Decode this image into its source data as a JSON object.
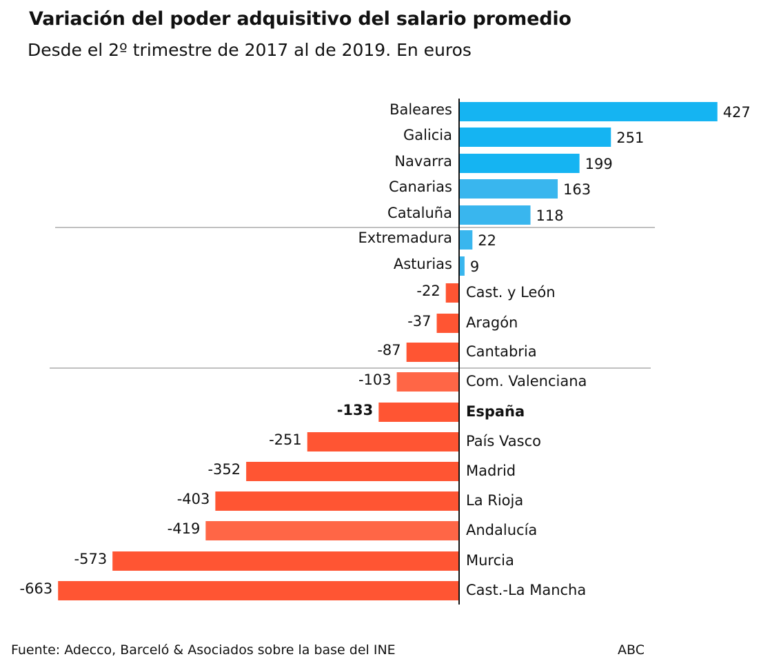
{
  "header": {
    "title": "Variación del poder adquisitivo del salario promedio",
    "subtitle": "Desde el 2º trimestre de 2017 al de 2019. En euros"
  },
  "footer": {
    "source": "Fuente: Adecco, Barceló & Asociados sobre la base del INE",
    "brand": "ABC"
  },
  "colors": {
    "positive": "#15b4f2",
    "positive_light": "#39b6ee",
    "negative": "#ff5533",
    "negative_light": "#ff6646",
    "axis": "#111111",
    "separator": "#9a9a9a"
  },
  "chart_data": {
    "type": "bar",
    "orientation": "horizontal",
    "title": "Variación del poder adquisitivo del salario promedio",
    "subtitle": "Desde el 2º trimestre de 2017 al de 2019. En euros",
    "unit": "euros",
    "xlim": [
      -663,
      427
    ],
    "categories": [
      "Baleares",
      "Galicia",
      "Navarra",
      "Canarias",
      "Cataluña",
      "Extremadura",
      "Asturias",
      "Cast. y León",
      "Aragón",
      "Cantabria",
      "Com. Valenciana",
      "España",
      "País Vasco",
      "Madrid",
      "La Rioja",
      "Andalucía",
      "Murcia",
      "Cast.-La Mancha"
    ],
    "values": [
      427,
      251,
      199,
      163,
      118,
      22,
      9,
      -22,
      -37,
      -87,
      -103,
      -133,
      -251,
      -352,
      -403,
      -419,
      -573,
      -663
    ],
    "labels": [
      "427",
      "251",
      "199",
      "163",
      "118",
      "22",
      "9",
      "-22",
      "-37",
      "-87",
      "-103",
      "-133",
      "-251",
      "-352",
      "-403",
      "-419",
      "-573",
      "-663"
    ],
    "highlight": [
      "España"
    ],
    "lighter_bars": [
      "Canarias",
      "Cataluña",
      "Extremadura",
      "Asturias",
      "Com. Valenciana",
      "Andalucía"
    ],
    "group_separators_after": [
      "Cataluña",
      "Cantabria"
    ]
  }
}
